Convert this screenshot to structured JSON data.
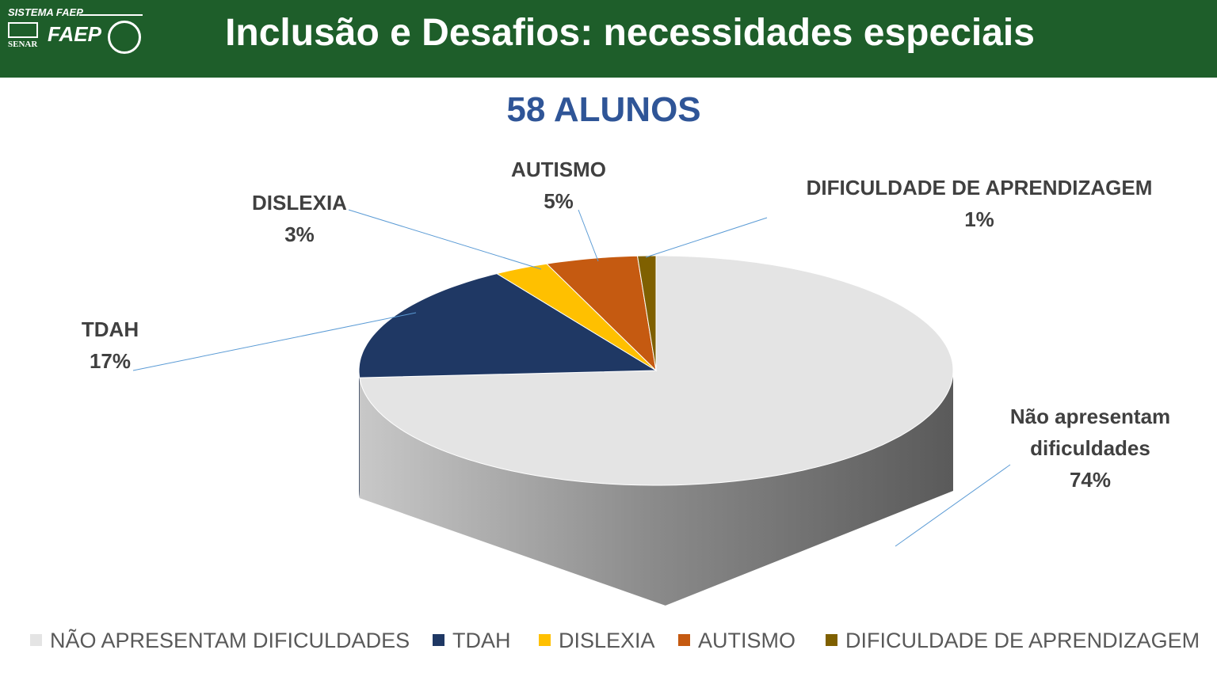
{
  "header": {
    "brand": "SISTEMA FAEP",
    "logo_left": "SENAR",
    "logo_mid": "FAEP",
    "title": "Inclusão e Desafios: necessidades especiais"
  },
  "chart_data": {
    "type": "pie",
    "title": "58 ALUNOS",
    "categories": [
      "NÃO APRESENTAM DIFICULDADES",
      "TDAH",
      "DISLEXIA",
      "AUTISMO",
      "DIFICULDADE DE APRENDIZAGEM"
    ],
    "label_names": [
      "Não apresentam dificuldades",
      "TDAH",
      "DISLEXIA",
      "AUTISMO",
      "DIFICULDADE DE APRENDIZAGEM"
    ],
    "values": [
      74,
      17,
      3,
      5,
      1
    ],
    "value_labels": [
      "74%",
      "17%",
      "3%",
      "5%",
      "1%"
    ],
    "colors": [
      "#e4e4e4",
      "#1f3864",
      "#ffc000",
      "#c55a11",
      "#7f6000"
    ],
    "legend": "bottom"
  }
}
